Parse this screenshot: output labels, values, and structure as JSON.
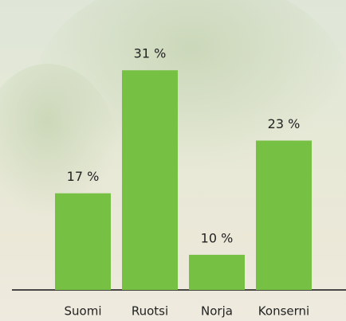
{
  "chart_data": {
    "type": "bar",
    "categories": [
      "Suomi",
      "Ruotsi",
      "Norja",
      "Konserni"
    ],
    "values": [
      17,
      31,
      10,
      23
    ],
    "value_labels": [
      "17 %",
      "31 %",
      "10 %",
      "23 %"
    ],
    "color": "#76c043",
    "ylim": [
      6,
      39
    ]
  }
}
